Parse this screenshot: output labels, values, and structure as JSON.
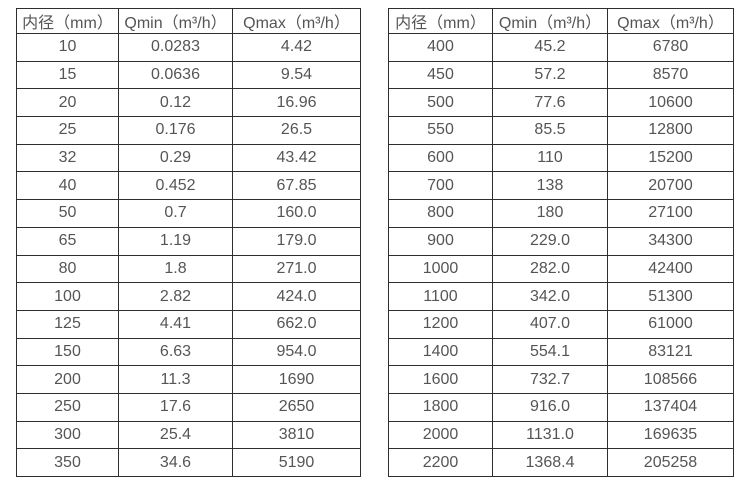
{
  "page": {
    "background": "#ffffff",
    "table_border_color": "#2e2e2e",
    "text_color": "#555555"
  },
  "tables": [
    {
      "id": "flow-table-small-diameters",
      "headers": [
        "内径（mm）",
        "Qmin（m³/h）",
        "Qmax（m³/h）"
      ],
      "rows": [
        [
          "10",
          "0.0283",
          "4.42"
        ],
        [
          "15",
          "0.0636",
          "9.54"
        ],
        [
          "20",
          "0.12",
          "16.96"
        ],
        [
          "25",
          "0.176",
          "26.5"
        ],
        [
          "32",
          "0.29",
          "43.42"
        ],
        [
          "40",
          "0.452",
          "67.85"
        ],
        [
          "50",
          "0.7",
          "160.0"
        ],
        [
          "65",
          "1.19",
          "179.0"
        ],
        [
          "80",
          "1.8",
          "271.0"
        ],
        [
          "100",
          "2.82",
          "424.0"
        ],
        [
          "125",
          "4.41",
          "662.0"
        ],
        [
          "150",
          "6.63",
          "954.0"
        ],
        [
          "200",
          "11.3",
          "1690"
        ],
        [
          "250",
          "17.6",
          "2650"
        ],
        [
          "300",
          "25.4",
          "3810"
        ],
        [
          "350",
          "34.6",
          "5190"
        ]
      ]
    },
    {
      "id": "flow-table-large-diameters",
      "headers": [
        "内径（mm）",
        "Qmin（m³/h）",
        "Qmax（m³/h）"
      ],
      "rows": [
        [
          "400",
          "45.2",
          "6780"
        ],
        [
          "450",
          "57.2",
          "8570"
        ],
        [
          "500",
          "77.6",
          "10600"
        ],
        [
          "550",
          "85.5",
          "12800"
        ],
        [
          "600",
          "110",
          "15200"
        ],
        [
          "700",
          "138",
          "20700"
        ],
        [
          "800",
          "180",
          "27100"
        ],
        [
          "900",
          "229.0",
          "34300"
        ],
        [
          "1000",
          "282.0",
          "42400"
        ],
        [
          "1100",
          "342.0",
          "51300"
        ],
        [
          "1200",
          "407.0",
          "61000"
        ],
        [
          "1400",
          "554.1",
          "83121"
        ],
        [
          "1600",
          "732.7",
          "108566"
        ],
        [
          "1800",
          "916.0",
          "137404"
        ],
        [
          "2000",
          "1131.0",
          "169635"
        ],
        [
          "2200",
          "1368.4",
          "205258"
        ]
      ]
    }
  ]
}
